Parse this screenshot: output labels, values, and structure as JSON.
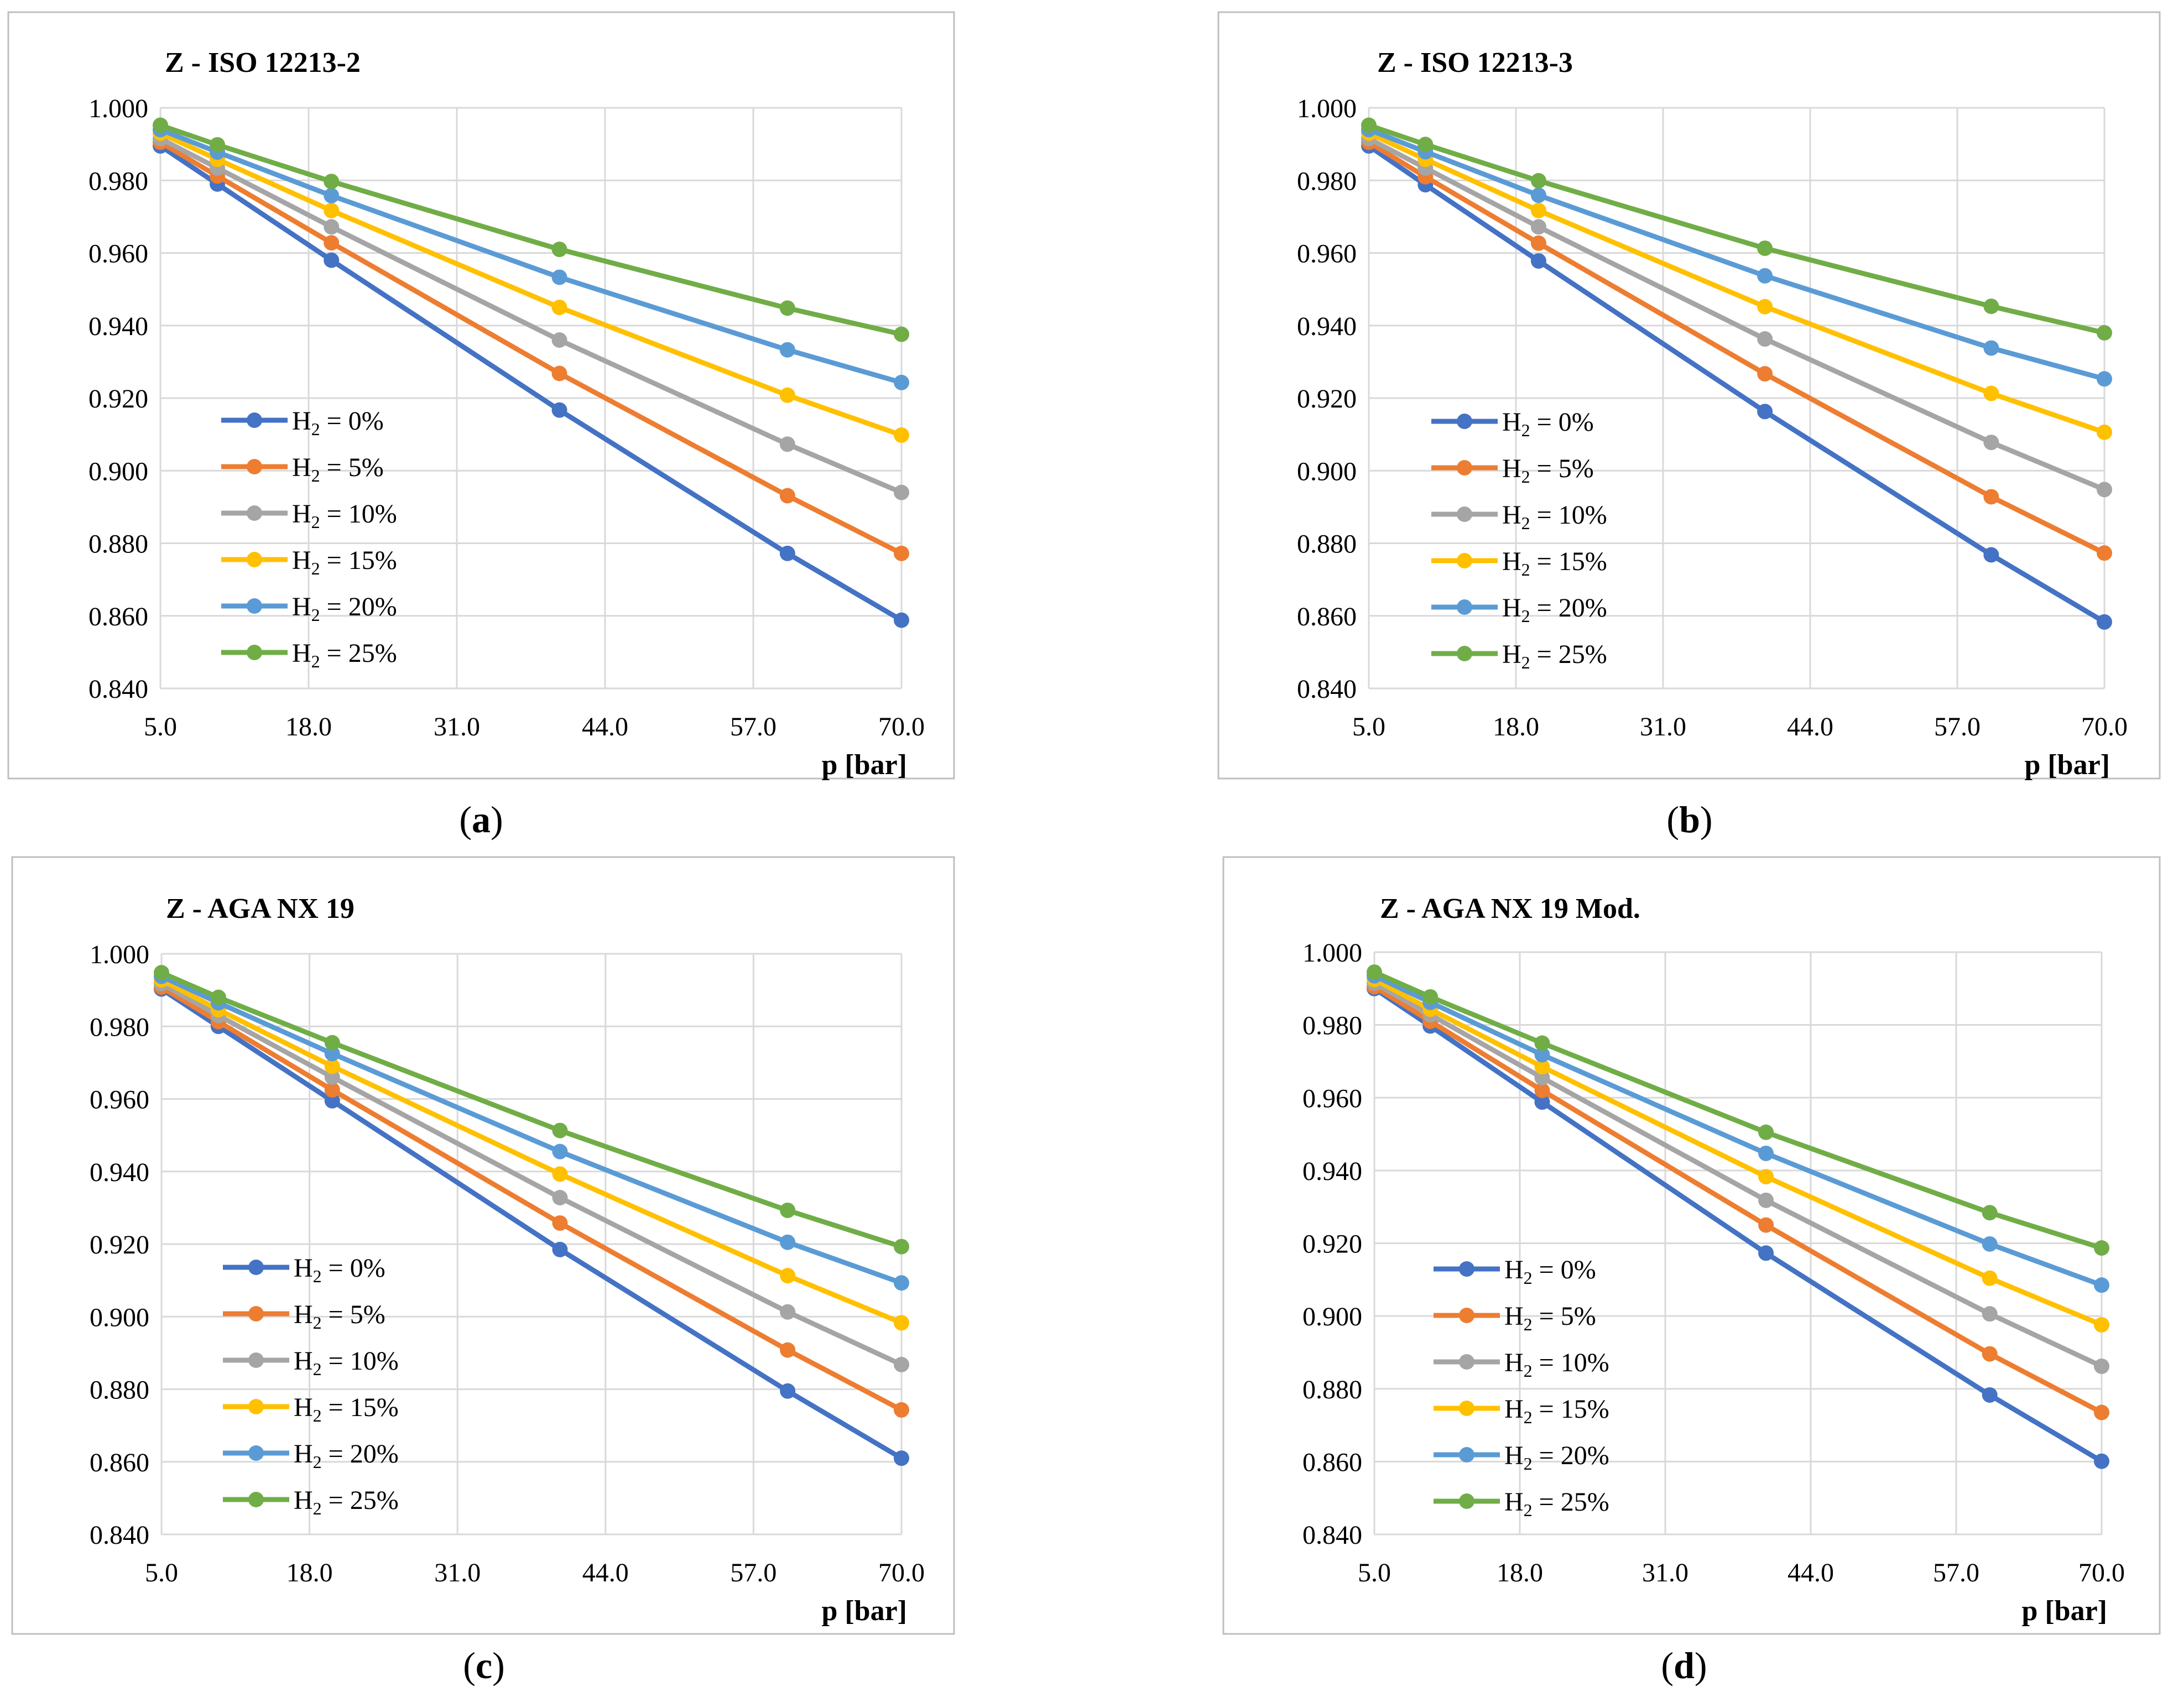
{
  "colors": {
    "series": [
      "#4472C4",
      "#ED7D31",
      "#A5A5A5",
      "#FFC000",
      "#5B9BD5",
      "#70AD47"
    ],
    "grid": "#D9D9D9",
    "frame": "#BFBFBF",
    "text": "#000000"
  },
  "chart_data": [
    {
      "type": "line",
      "panel_label": "(a)",
      "panel_letter": "a",
      "title": "Z - ISO 12213-2",
      "xlabel": "p [bar]",
      "ylabel": "",
      "xlim": [
        5,
        70
      ],
      "ylim": [
        0.84,
        1.0
      ],
      "xticks": [
        "5.0",
        "18.0",
        "31.0",
        "44.0",
        "57.0",
        "70.0"
      ],
      "yticks": [
        "0.840",
        "0.860",
        "0.880",
        "0.900",
        "0.920",
        "0.940",
        "0.960",
        "0.980",
        "1.000"
      ],
      "legend": "left-center",
      "x": [
        5,
        10,
        20,
        40,
        60,
        70
      ],
      "series": [
        {
          "name": "H₂ = 0%",
          "legend_prefix": "H",
          "legend_sub": "2",
          "legend_suffix": " = 0%",
          "values": [
            0.9895,
            0.979,
            0.958,
            0.9167,
            0.8772,
            0.8588
          ]
        },
        {
          "name": "H₂ = 5%",
          "legend_prefix": "H",
          "legend_sub": "2",
          "legend_suffix": " = 5%",
          "values": [
            0.9905,
            0.9812,
            0.9628,
            0.9268,
            0.8931,
            0.8772
          ]
        },
        {
          "name": "H₂ = 10%",
          "legend_prefix": "H",
          "legend_sub": "2",
          "legend_suffix": " = 10%",
          "values": [
            0.9915,
            0.9834,
            0.9672,
            0.936,
            0.9073,
            0.894
          ]
        },
        {
          "name": "H₂ = 15%",
          "legend_prefix": "H",
          "legend_sub": "2",
          "legend_suffix": " = 15%",
          "values": [
            0.993,
            0.9858,
            0.9717,
            0.945,
            0.9208,
            0.9098
          ]
        },
        {
          "name": "H₂ = 20%",
          "legend_prefix": "H",
          "legend_sub": "2",
          "legend_suffix": " = 20%",
          "values": [
            0.994,
            0.9878,
            0.9758,
            0.9533,
            0.9333,
            0.9243
          ]
        },
        {
          "name": "H₂ = 25%",
          "legend_prefix": "H",
          "legend_sub": "2",
          "legend_suffix": " = 25%",
          "values": [
            0.9952,
            0.9898,
            0.9797,
            0.961,
            0.9448,
            0.9376
          ]
        }
      ]
    },
    {
      "type": "line",
      "panel_label": "(b)",
      "panel_letter": "b",
      "title": "Z - ISO 12213-3",
      "xlabel": "p [bar]",
      "ylabel": "",
      "xlim": [
        5,
        70
      ],
      "ylim": [
        0.84,
        1.0
      ],
      "xticks": [
        "5.0",
        "18.0",
        "31.0",
        "44.0",
        "57.0",
        "70.0"
      ],
      "yticks": [
        "0.840",
        "0.860",
        "0.880",
        "0.900",
        "0.920",
        "0.940",
        "0.960",
        "0.980",
        "1.000"
      ],
      "legend": "left-center",
      "x": [
        5,
        10,
        20,
        40,
        60,
        70
      ],
      "series": [
        {
          "name": "H₂ = 0%",
          "legend_prefix": "H",
          "legend_sub": "2",
          "legend_suffix": " = 0%",
          "values": [
            0.9895,
            0.9788,
            0.9578,
            0.9163,
            0.8768,
            0.8583
          ]
        },
        {
          "name": "H₂ = 5%",
          "legend_prefix": "H",
          "legend_sub": "2",
          "legend_suffix": " = 5%",
          "values": [
            0.9905,
            0.981,
            0.9627,
            0.9267,
            0.8928,
            0.8773
          ]
        },
        {
          "name": "H₂ = 10%",
          "legend_prefix": "H",
          "legend_sub": "2",
          "legend_suffix": " = 10%",
          "values": [
            0.9915,
            0.9834,
            0.9672,
            0.9363,
            0.9078,
            0.8948
          ]
        },
        {
          "name": "H₂ = 15%",
          "legend_prefix": "H",
          "legend_sub": "2",
          "legend_suffix": " = 15%",
          "values": [
            0.993,
            0.9858,
            0.9717,
            0.9452,
            0.9213,
            0.9106
          ]
        },
        {
          "name": "H₂ = 20%",
          "legend_prefix": "H",
          "legend_sub": "2",
          "legend_suffix": " = 20%",
          "values": [
            0.994,
            0.9879,
            0.9759,
            0.9537,
            0.9338,
            0.9253
          ]
        },
        {
          "name": "H₂ = 25%",
          "legend_prefix": "H",
          "legend_sub": "2",
          "legend_suffix": " = 25%",
          "values": [
            0.9952,
            0.9899,
            0.9799,
            0.9613,
            0.9453,
            0.938
          ]
        }
      ]
    },
    {
      "type": "line",
      "panel_label": "(c)",
      "panel_letter": "c",
      "title": "Z - AGA NX 19",
      "xlabel": "p [bar]",
      "ylabel": "",
      "xlim": [
        5,
        70
      ],
      "ylim": [
        0.84,
        1.0
      ],
      "xticks": [
        "5.0",
        "18.0",
        "31.0",
        "44.0",
        "57.0",
        "70.0"
      ],
      "yticks": [
        "0.840",
        "0.860",
        "0.880",
        "0.900",
        "0.920",
        "0.940",
        "0.960",
        "0.980",
        "1.000"
      ],
      "legend": "left-center",
      "x": [
        5,
        10,
        20,
        40,
        60,
        70
      ],
      "series": [
        {
          "name": "H₂ = 0%",
          "legend_prefix": "H",
          "legend_sub": "2",
          "legend_suffix": " = 0%",
          "values": [
            0.9903,
            0.98,
            0.9595,
            0.9185,
            0.8795,
            0.861
          ]
        },
        {
          "name": "H₂ = 5%",
          "legend_prefix": "H",
          "legend_sub": "2",
          "legend_suffix": " = 5%",
          "values": [
            0.9908,
            0.9813,
            0.9625,
            0.9258,
            0.8908,
            0.8743
          ]
        },
        {
          "name": "H₂ = 10%",
          "legend_prefix": "H",
          "legend_sub": "2",
          "legend_suffix": " = 10%",
          "values": [
            0.9918,
            0.983,
            0.966,
            0.9328,
            0.9013,
            0.8868
          ]
        },
        {
          "name": "H₂ = 15%",
          "legend_prefix": "H",
          "legend_sub": "2",
          "legend_suffix": " = 15%",
          "values": [
            0.9928,
            0.9846,
            0.969,
            0.9393,
            0.9113,
            0.8983
          ]
        },
        {
          "name": "H₂ = 20%",
          "legend_prefix": "H",
          "legend_sub": "2",
          "legend_suffix": " = 20%",
          "values": [
            0.9938,
            0.9865,
            0.9725,
            0.9455,
            0.9205,
            0.9093
          ]
        },
        {
          "name": "H₂ = 25%",
          "legend_prefix": "H",
          "legend_sub": "2",
          "legend_suffix": " = 25%",
          "values": [
            0.9948,
            0.988,
            0.9755,
            0.9513,
            0.9293,
            0.9193
          ]
        }
      ]
    },
    {
      "type": "line",
      "panel_label": "(d)",
      "panel_letter": "d",
      "title": "Z - AGA NX 19 Mod.",
      "xlabel": "p [bar]",
      "ylabel": "",
      "xlim": [
        5,
        70
      ],
      "ylim": [
        0.84,
        1.0
      ],
      "xticks": [
        "5.0",
        "18.0",
        "31.0",
        "44.0",
        "57.0",
        "70.0"
      ],
      "yticks": [
        "0.840",
        "0.860",
        "0.880",
        "0.900",
        "0.920",
        "0.940",
        "0.960",
        "0.980",
        "1.000"
      ],
      "legend": "left-center",
      "x": [
        5,
        10,
        20,
        40,
        60,
        70
      ],
      "series": [
        {
          "name": "H₂ = 0%",
          "legend_prefix": "H",
          "legend_sub": "2",
          "legend_suffix": " = 0%",
          "values": [
            0.99,
            0.9797,
            0.9588,
            0.9173,
            0.8783,
            0.8601
          ]
        },
        {
          "name": "H₂ = 5%",
          "legend_prefix": "H",
          "legend_sub": "2",
          "legend_suffix": " = 5%",
          "values": [
            0.9905,
            0.981,
            0.962,
            0.925,
            0.8896,
            0.8735
          ]
        },
        {
          "name": "H₂ = 10%",
          "legend_prefix": "H",
          "legend_sub": "2",
          "legend_suffix": " = 10%",
          "values": [
            0.9915,
            0.9828,
            0.9655,
            0.9318,
            0.9006,
            0.8862
          ]
        },
        {
          "name": "H₂ = 15%",
          "legend_prefix": "H",
          "legend_sub": "2",
          "legend_suffix": " = 15%",
          "values": [
            0.9925,
            0.9843,
            0.9685,
            0.9383,
            0.9104,
            0.8976
          ]
        },
        {
          "name": "H₂ = 20%",
          "legend_prefix": "H",
          "legend_sub": "2",
          "legend_suffix": " = 20%",
          "values": [
            0.9935,
            0.9862,
            0.9718,
            0.9447,
            0.9198,
            0.9085
          ]
        },
        {
          "name": "H₂ = 25%",
          "legend_prefix": "H",
          "legend_sub": "2",
          "legend_suffix": " = 25%",
          "values": [
            0.9945,
            0.9877,
            0.975,
            0.9505,
            0.9284,
            0.9187
          ]
        }
      ]
    }
  ]
}
